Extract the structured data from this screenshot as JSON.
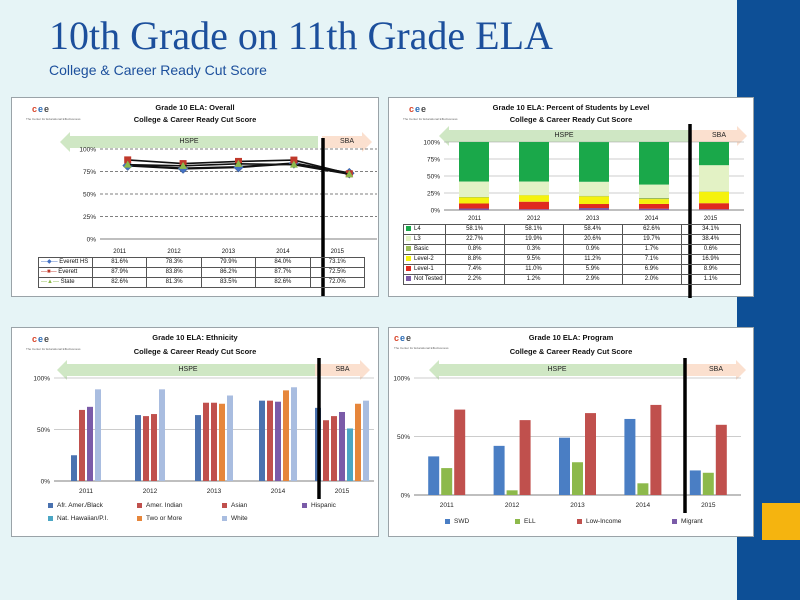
{
  "slide": {
    "title": "10th Grade on 11th Grade ELA",
    "subtitle": "College & Career Ready Cut Score",
    "logo_text": "cee",
    "logo_sub": "The Center for Educational Effectiveness"
  },
  "colors": {
    "sidebar": "#0d4f96",
    "accent": "#f5b40f",
    "title": "#1c4f9c",
    "hspe_arrow": "#cfe7c4",
    "sba_arrow": "#fbe0cf"
  },
  "chart_data": [
    {
      "id": "overall",
      "type": "line",
      "title": "Grade 10 ELA: Overall",
      "subtitle": "College & Career Ready Cut Score",
      "arrows": {
        "hspe": "HSPE",
        "sba": "SBA"
      },
      "categories": [
        "2011",
        "2012",
        "2013",
        "2014",
        "2015"
      ],
      "ylim": [
        0,
        100
      ],
      "yticks": [
        "0%",
        "25%",
        "50%",
        "75%",
        "100%"
      ],
      "grid": true,
      "series": [
        {
          "name": "Everett HS",
          "color": "#4472c4",
          "marker": "diamond",
          "values": [
            81.6,
            78.3,
            79.9,
            84.0,
            73.1
          ],
          "labels": [
            "81.6%",
            "78.3%",
            "79.9%",
            "84.0%",
            "73.1%"
          ]
        },
        {
          "name": "Everett",
          "color": "#c0392b",
          "marker": "square",
          "values": [
            87.9,
            83.8,
            86.2,
            87.7,
            72.5
          ],
          "labels": [
            "87.9%",
            "83.8%",
            "86.2%",
            "87.7%",
            "72.5%"
          ]
        },
        {
          "name": "State",
          "color": "#8db94b",
          "marker": "triangle",
          "values": [
            82.6,
            81.3,
            83.5,
            82.6,
            72.0
          ],
          "labels": [
            "82.6%",
            "81.3%",
            "83.5%",
            "82.6%",
            "72.0%"
          ]
        }
      ]
    },
    {
      "id": "level",
      "type": "bar",
      "stacked": true,
      "title": "Grade 10 ELA: Percent of Students by Level",
      "subtitle": "College & Career Ready Cut Score",
      "arrows": {
        "hspe": "HSPE",
        "sba": "SBA"
      },
      "categories": [
        "2011",
        "2012",
        "2013",
        "2014",
        "2015"
      ],
      "ylim": [
        0,
        100
      ],
      "yticks": [
        "0%",
        "25%",
        "50%",
        "75%",
        "100%"
      ],
      "series": [
        {
          "name": "Not Tested",
          "color": "#7b5aa6",
          "values": [
            2.2,
            1.2,
            2.9,
            2.0,
            1.1
          ],
          "labels": [
            "2.2%",
            "1.2%",
            "2.9%",
            "2.0%",
            "1.1%"
          ]
        },
        {
          "name": "Level-1",
          "color": "#e02a1f",
          "values": [
            7.4,
            11.0,
            5.9,
            6.9,
            8.9
          ],
          "labels": [
            "7.4%",
            "11.0%",
            "5.9%",
            "6.9%",
            "8.9%"
          ]
        },
        {
          "name": "Level-2",
          "color": "#f5f20d",
          "values": [
            8.8,
            9.5,
            11.2,
            7.1,
            16.9
          ],
          "labels": [
            "8.8%",
            "9.5%",
            "11.2%",
            "7.1%",
            "16.9%"
          ]
        },
        {
          "name": "Basic",
          "color": "#9bbb59",
          "values": [
            0.8,
            0.3,
            0.9,
            1.7,
            0.6
          ],
          "labels": [
            "0.8%",
            "0.3%",
            "0.9%",
            "1.7%",
            "0.6%"
          ]
        },
        {
          "name": "L3",
          "color": "#e3f2c5",
          "values": [
            22.7,
            19.9,
            20.6,
            19.7,
            38.4
          ],
          "labels": [
            "22.7%",
            "19.9%",
            "20.6%",
            "19.7%",
            "38.4%"
          ]
        },
        {
          "name": "L4",
          "color": "#1aa84a",
          "values": [
            58.1,
            58.1,
            58.4,
            62.6,
            34.1
          ],
          "labels": [
            "58.1%",
            "58.1%",
            "58.4%",
            "62.6%",
            "34.1%"
          ]
        }
      ],
      "table_order": [
        "L4",
        "L3",
        "Basic",
        "Level-2",
        "Level-1",
        "Not Tested"
      ]
    },
    {
      "id": "ethnicity",
      "type": "bar",
      "title": "Grade 10 ELA: Ethnicity",
      "subtitle": "College & Career Ready Cut Score",
      "arrows": {
        "hspe": "HSPE",
        "sba": "SBA"
      },
      "categories": [
        "2011",
        "2012",
        "2013",
        "2014",
        "2015"
      ],
      "ylim": [
        0,
        100
      ],
      "yticks": [
        "0%",
        "50%",
        "100%"
      ],
      "grid": true,
      "series": [
        {
          "name": "Afr. Amer./Black",
          "color": "#4a72b0",
          "values": [
            25,
            64,
            64,
            78,
            71
          ]
        },
        {
          "name": "Amer. Indian",
          "color": "#c0504d",
          "values": [
            null,
            63,
            76,
            null,
            59
          ]
        },
        {
          "name": "Asian",
          "color": "#c0504d",
          "values": [
            69,
            65,
            76,
            78,
            63
          ]
        },
        {
          "name": "Hispanic",
          "color": "#7a5ba8",
          "values": [
            72,
            null,
            null,
            77,
            67
          ]
        },
        {
          "name": "Nat. Hawaiian/P.I.",
          "color": "#4ba6c4",
          "values": [
            null,
            null,
            null,
            null,
            51
          ]
        },
        {
          "name": "Two or More",
          "color": "#e6863b",
          "values": [
            null,
            null,
            75,
            88,
            75
          ]
        },
        {
          "name": "White",
          "color": "#a9bde0",
          "values": [
            89,
            89,
            83,
            91,
            78
          ]
        }
      ]
    },
    {
      "id": "program",
      "type": "bar",
      "title": "Grade 10 ELA: Program",
      "subtitle": "College & Career Ready Cut Score",
      "arrows": {
        "hspe": "HSPE",
        "sba": "SBA"
      },
      "categories": [
        "2011",
        "2012",
        "2013",
        "2014",
        "2015"
      ],
      "ylim": [
        0,
        100
      ],
      "yticks": [
        "0%",
        "50%",
        "100%"
      ],
      "grid": true,
      "series": [
        {
          "name": "SWD",
          "color": "#4a7ec4",
          "values": [
            33,
            42,
            49,
            65,
            21
          ]
        },
        {
          "name": "ELL",
          "color": "#8db94b",
          "values": [
            23,
            4,
            28,
            10,
            19
          ]
        },
        {
          "name": "Low-Income",
          "color": "#c0504d",
          "values": [
            73,
            64,
            70,
            77,
            60
          ]
        },
        {
          "name": "Migrant",
          "color": "#7a5ba8",
          "values": [
            null,
            null,
            null,
            null,
            null
          ]
        }
      ]
    }
  ]
}
